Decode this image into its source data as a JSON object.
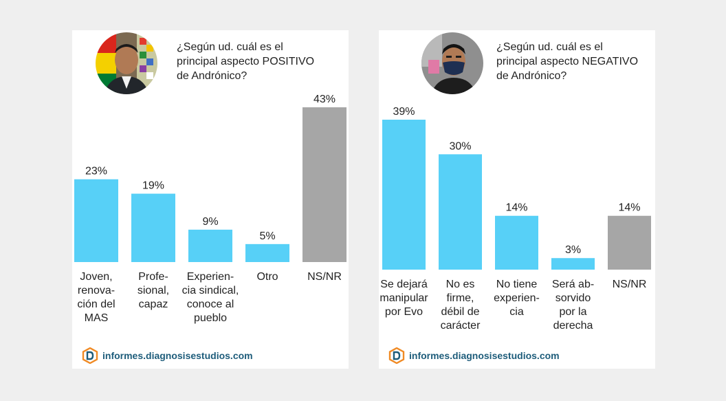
{
  "chart_data": [
    {
      "type": "bar",
      "title": "¿Según ud. cuál es el principal aspecto POSITIVO de Andrónico?",
      "categories": [
        [
          "Joven,",
          "renova-",
          "ción del",
          "MAS"
        ],
        [
          "Profe-",
          "sional,",
          "capaz"
        ],
        [
          "Experien-",
          "cia sindical,",
          "conoce al",
          "pueblo"
        ],
        [
          "Otro"
        ],
        [
          "NS/NR"
        ]
      ],
      "values": [
        23,
        19,
        9,
        5,
        43
      ],
      "value_labels": [
        "23%",
        "19%",
        "9%",
        "5%",
        "43%"
      ],
      "colors": [
        "#57d0f7",
        "#57d0f7",
        "#57d0f7",
        "#57d0f7",
        "#a6a6a6"
      ],
      "xlabel": "",
      "ylabel": "",
      "ylim": [
        0,
        43
      ]
    },
    {
      "type": "bar",
      "title": "¿Según ud. cuál es el principal aspecto NEGATIVO de Andrónico?",
      "categories": [
        [
          "Se dejará",
          "manipular",
          "por Evo"
        ],
        [
          "No es",
          "firme,",
          "débil de",
          "carácter"
        ],
        [
          "No tiene",
          "experien-",
          "cia"
        ],
        [
          "Será ab-",
          "sorvido",
          "por la",
          "derecha"
        ],
        [
          "NS/NR"
        ]
      ],
      "values": [
        39,
        30,
        14,
        3,
        14
      ],
      "value_labels": [
        "39%",
        "30%",
        "14%",
        "3%",
        "14%"
      ],
      "colors": [
        "#57d0f7",
        "#57d0f7",
        "#57d0f7",
        "#57d0f7",
        "#a6a6a6"
      ],
      "xlabel": "",
      "ylabel": "",
      "ylim": [
        0,
        39
      ]
    }
  ],
  "panels": [
    {
      "question_lines": [
        "¿Según ud. cuál es el",
        "principal aspecto POSITIVO",
        "de Andrónico?"
      ],
      "footer": "informes.diagnosisestudios.com"
    },
    {
      "question_lines": [
        "¿Según ud. cuál es el",
        "principal aspecto NEGATIVO",
        "de Andrónico?"
      ],
      "footer": "informes.diagnosisestudios.com"
    }
  ]
}
